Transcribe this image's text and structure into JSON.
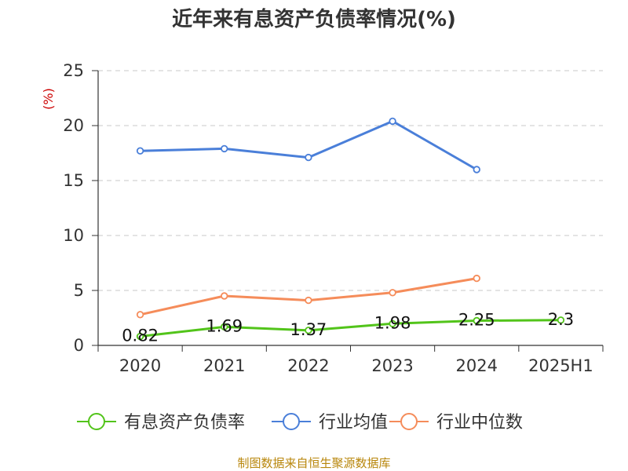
{
  "title": "近年来有息资产负债率情况(%)",
  "source": "制图数据来自恒生聚源数据库",
  "chart_data": {
    "type": "line",
    "title": "近年来有息资产负债率情况(%)",
    "ylabel": "(%)",
    "xlabel": "",
    "categories": [
      "2020",
      "2021",
      "2022",
      "2023",
      "2024",
      "2025H1"
    ],
    "ylim": [
      0,
      25
    ],
    "yticks": [
      0,
      5,
      10,
      15,
      20,
      25
    ],
    "grid": true,
    "legend_position": "bottom",
    "series": [
      {
        "name": "有息资产负债率",
        "color": "#52c41a",
        "values": [
          0.82,
          1.69,
          1.37,
          1.98,
          2.25,
          2.3
        ],
        "labels": [
          "0.82",
          "1.69",
          "1.37",
          "1.98",
          "2.25",
          "2.3"
        ]
      },
      {
        "name": "行业均值",
        "color": "#4a7fd9",
        "values": [
          17.7,
          17.9,
          17.1,
          20.4,
          16.0,
          null
        ]
      },
      {
        "name": "行业中位数",
        "color": "#f58c5a",
        "values": [
          2.8,
          4.5,
          4.1,
          4.8,
          6.1,
          null
        ]
      }
    ]
  }
}
